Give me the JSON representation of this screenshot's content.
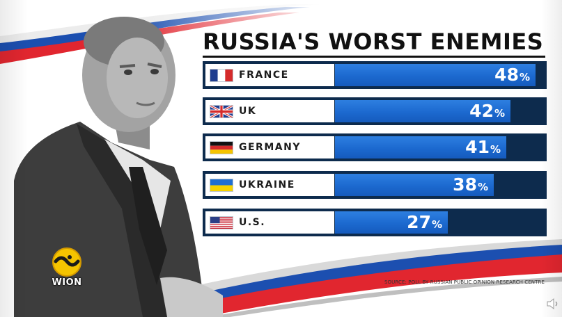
{
  "broadcaster": {
    "logo_text": "WION"
  },
  "colors": {
    "bar": "#1c69cf",
    "row_background": "#0d2b4d",
    "label_background": "#ffffff",
    "title": "#111111",
    "ribbon_red": "#e1262f",
    "ribbon_blue": "#1c4fb0"
  },
  "icons": {
    "logo": "wion-logo-icon",
    "speaker": "speaker-icon",
    "flags": [
      "flag-france-icon",
      "flag-uk-icon",
      "flag-germany-icon",
      "flag-ukraine-icon",
      "flag-us-icon"
    ]
  },
  "chart_data": {
    "type": "bar",
    "orientation": "horizontal",
    "title": "RUSSIA'S WORST ENEMIES",
    "value_suffix": "%",
    "categories": [
      "FRANCE",
      "UK",
      "GERMANY",
      "UKRAINE",
      "U.S."
    ],
    "values": [
      48,
      42,
      41,
      38,
      27
    ],
    "xlim": [
      0,
      50
    ],
    "grid": false,
    "legend": false,
    "source": "SOURCE: POLL BY RUSSIAN PUBLIC OPINION RESEARCH CENTRE"
  }
}
